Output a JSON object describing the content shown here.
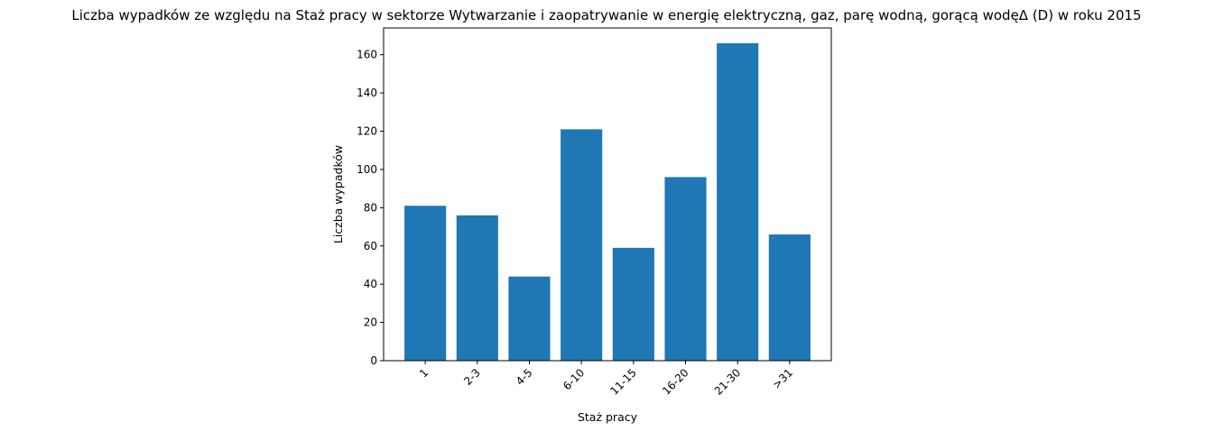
{
  "chart_data": {
    "type": "bar",
    "title": "Liczba wypadków ze względu na Staż pracy w sektorze Wytwarzanie i zaopatrywanie w energię elektryczną, gaz, parę wodną, gorącą wodęΔ  (D) w roku 2015",
    "xlabel": "Staż pracy",
    "ylabel": "Liczba wypadków",
    "categories": [
      "1",
      "2-3",
      "4-5",
      "6-10",
      "11-15",
      "16-20",
      "21-30",
      ">31"
    ],
    "values": [
      81,
      76,
      44,
      121,
      59,
      96,
      166,
      66
    ],
    "ylim": [
      0,
      174
    ],
    "yticks": [
      0,
      20,
      40,
      60,
      80,
      100,
      120,
      140,
      160
    ],
    "bar_color": "#1f77b4",
    "grid": false,
    "legend": false
  }
}
